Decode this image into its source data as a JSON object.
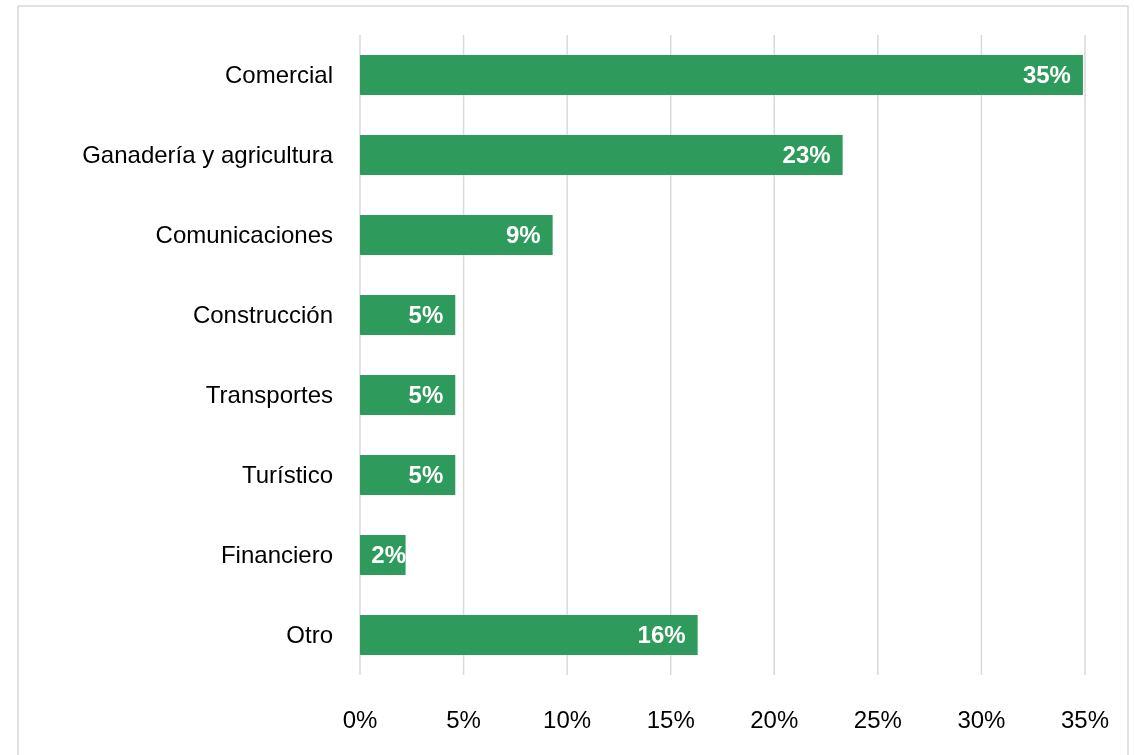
{
  "chart_data": {
    "type": "bar",
    "orientation": "horizontal",
    "categories": [
      "Comercial",
      "Ganadería y agricultura",
      "Comunicaciones",
      "Construcción",
      "Transportes",
      "Turístico",
      "Financiero",
      "Otro"
    ],
    "values": [
      34.9,
      23.3,
      9.3,
      4.6,
      4.6,
      4.6,
      2.2,
      16.3
    ],
    "value_labels": [
      "35%",
      "23%",
      "9%",
      "5%",
      "5%",
      "5%",
      "2%",
      "16%"
    ],
    "color": "#2e9a5c",
    "xlim": [
      0,
      35
    ],
    "xticks": [
      {
        "value": 0,
        "label": "0%"
      },
      {
        "value": 5,
        "label": "5%"
      },
      {
        "value": 10,
        "label": "10%"
      },
      {
        "value": 15,
        "label": "15%"
      },
      {
        "value": 20,
        "label": "20%"
      },
      {
        "value": 25,
        "label": "25%"
      },
      {
        "value": 30,
        "label": "30%"
      },
      {
        "value": 35,
        "label": "35%"
      }
    ],
    "grid": "x"
  }
}
